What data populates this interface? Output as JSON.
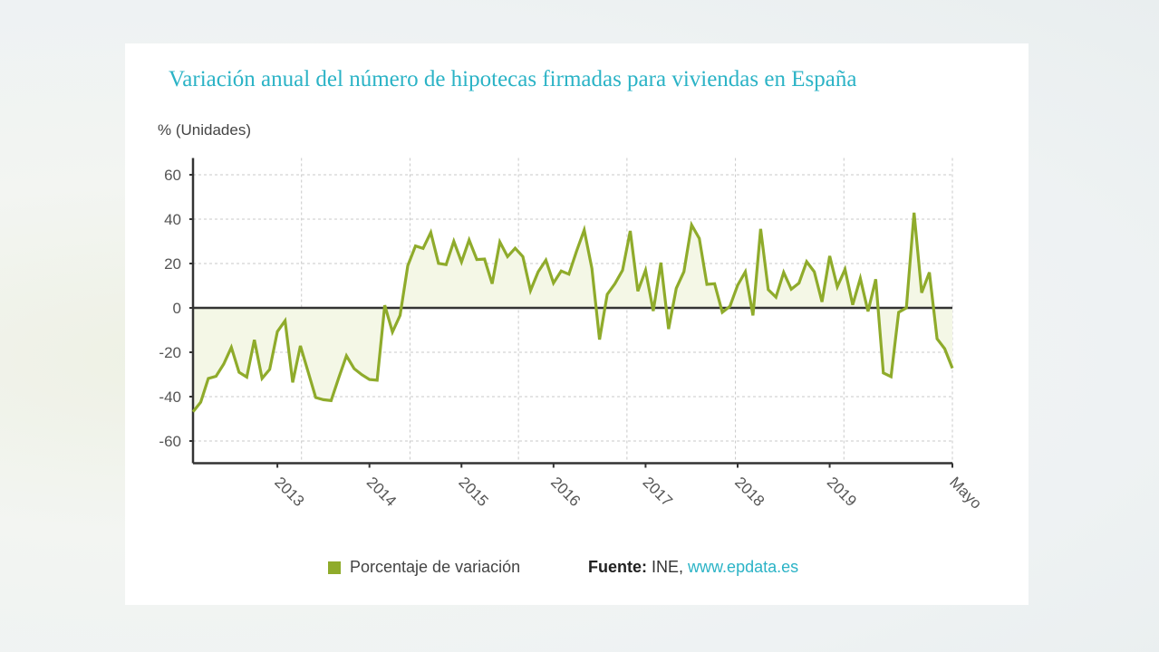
{
  "chart_data": {
    "type": "area",
    "title": "Variación anual del número de hipotecas firmadas para viviendas en España",
    "ylabel": "% (Unidades)",
    "xlabel": "",
    "ylim": [
      -70,
      70
    ],
    "y_ticks": [
      60,
      40,
      20,
      0,
      -20,
      -40,
      -60
    ],
    "grid": true,
    "legend_placement": "bottom",
    "colors": {
      "line": "#8fab2b",
      "fill": "#f4f7e6",
      "title": "#2bb3c6",
      "zero_line": "#333333"
    },
    "x_ticks": [
      {
        "at": "2013-01",
        "label": "2013"
      },
      {
        "at": "2014-01",
        "label": "2014"
      },
      {
        "at": "2015-01",
        "label": "2015"
      },
      {
        "at": "2016-01",
        "label": "2016"
      },
      {
        "at": "2017-01",
        "label": "2017"
      },
      {
        "at": "2018-01",
        "label": "2018"
      },
      {
        "at": "2019-01",
        "label": "2019"
      },
      {
        "at": "2020-05",
        "label": "Mayo"
      }
    ],
    "series": [
      {
        "name": "Porcentaje de variación",
        "x": [
          "2012-02",
          "2012-03",
          "2012-04",
          "2012-05",
          "2012-06",
          "2012-07",
          "2012-08",
          "2012-09",
          "2012-10",
          "2012-11",
          "2012-12",
          "2013-01",
          "2013-02",
          "2013-03",
          "2013-04",
          "2013-05",
          "2013-06",
          "2013-07",
          "2013-08",
          "2013-09",
          "2013-10",
          "2013-11",
          "2013-12",
          "2014-01",
          "2014-02",
          "2014-03",
          "2014-04",
          "2014-05",
          "2014-06",
          "2014-07",
          "2014-08",
          "2014-09",
          "2014-10",
          "2014-11",
          "2014-12",
          "2015-01",
          "2015-02",
          "2015-03",
          "2015-04",
          "2015-05",
          "2015-06",
          "2015-07",
          "2015-08",
          "2015-09",
          "2015-10",
          "2015-11",
          "2015-12",
          "2016-01",
          "2016-02",
          "2016-03",
          "2016-04",
          "2016-05",
          "2016-06",
          "2016-07",
          "2016-08",
          "2016-09",
          "2016-10",
          "2016-11",
          "2016-12",
          "2017-01",
          "2017-02",
          "2017-03",
          "2017-04",
          "2017-05",
          "2017-06",
          "2017-07",
          "2017-08",
          "2017-09",
          "2017-10",
          "2017-11",
          "2017-12",
          "2018-01",
          "2018-02",
          "2018-03",
          "2018-04",
          "2018-05",
          "2018-06",
          "2018-07",
          "2018-08",
          "2018-09",
          "2018-10",
          "2018-11",
          "2018-12",
          "2019-01",
          "2019-02",
          "2019-03",
          "2019-04",
          "2019-05",
          "2019-06",
          "2019-07",
          "2019-08",
          "2019-09",
          "2019-10",
          "2019-11",
          "2019-12",
          "2020-01",
          "2020-02",
          "2020-03",
          "2020-04",
          "2020-05"
        ],
        "values": [
          -46.8,
          -42.5,
          -31.8,
          -30.8,
          -25.3,
          -17.8,
          -29,
          -31.2,
          -14.4,
          -31.8,
          -27.7,
          -10.7,
          -5.8,
          -33.6,
          -17.1,
          -28.8,
          -40.4,
          -41.4,
          -41.8,
          -31.5,
          -21.6,
          -27.4,
          -30.1,
          -32.3,
          -32.6,
          1.2,
          -10.9,
          -3.4,
          19,
          27.9,
          26.8,
          34,
          20.1,
          19.5,
          30,
          20.7,
          30.6,
          21.8,
          22,
          10.9,
          29.7,
          23.1,
          26.9,
          23.1,
          7.8,
          16.3,
          21.5,
          11.2,
          16.6,
          15.2,
          25.5,
          35.1,
          17.7,
          -14.3,
          6.1,
          10.9,
          17,
          34.7,
          7.5,
          17,
          -1.4,
          20.4,
          -9.5,
          8.8,
          16.3,
          37.4,
          31.3,
          10.6,
          10.9,
          -2,
          0.7,
          10.2,
          16.3,
          -3.4,
          35.6,
          8.2,
          4.8,
          16,
          8.4,
          11.2,
          20.8,
          16.3,
          2.7,
          23.4,
          9.5,
          17.4,
          1.4,
          13.3,
          -1.6,
          12.9,
          -29.3,
          -31,
          -2,
          0,
          42.9,
          6.8,
          16,
          -13.9,
          -18.4,
          -27.2
        ]
      }
    ]
  },
  "legend": {
    "label": "Porcentaje de variación"
  },
  "source": {
    "prefix": "Fuente:",
    "org": "INE,",
    "link": "www.epdata.es"
  }
}
